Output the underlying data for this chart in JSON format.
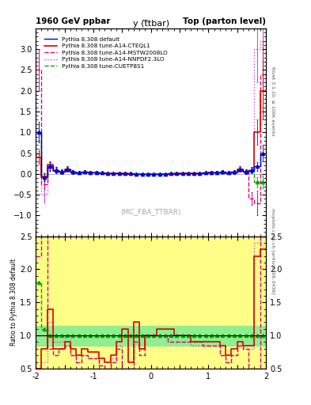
{
  "title_left": "1960 GeV ppbar",
  "title_right": "Top (parton level)",
  "plot_title": "y (t̅tbar)",
  "ylabel_ratio": "Ratio to Pythia 8.308 default",
  "right_label_top": "Rivet 3.1.10, ≥ 100k events",
  "right_label_bottom": "mcplots.cern.ch [arXiv:1306.3436]",
  "watermark": "(MC_FBA_TTBAR)",
  "xlim": [
    -2.0,
    2.0
  ],
  "ylim_main": [
    -1.5,
    3.5
  ],
  "ylim_ratio": [
    0.5,
    2.5
  ],
  "yticks_main": [
    -1.0,
    -0.5,
    0.0,
    0.5,
    1.0,
    1.5,
    2.0,
    2.5,
    3.0
  ],
  "yticks_ratio": [
    0.5,
    1.0,
    1.5,
    2.0,
    2.5
  ],
  "series": [
    {
      "label": "Pythia 8.308 default",
      "color": "#0000dd",
      "linestyle": "-",
      "linewidth": 1.0,
      "marker": "^",
      "markersize": 3,
      "zorder": 5
    },
    {
      "label": "Pythia 8.308 tune-A14-CTEQL1",
      "color": "#dd0000",
      "linestyle": "-",
      "linewidth": 1.2,
      "marker": null,
      "markersize": 0,
      "zorder": 4
    },
    {
      "label": "Pythia 8.308 tune-A14-MSTW2008LO",
      "color": "#dd0077",
      "linestyle": "--",
      "linewidth": 1.0,
      "marker": null,
      "markersize": 0,
      "zorder": 3
    },
    {
      "label": "Pythia 8.308 tune-A14-NNPDF2.3LO",
      "color": "#cc44cc",
      "linestyle": ":",
      "linewidth": 1.0,
      "marker": null,
      "markersize": 0,
      "zorder": 2
    },
    {
      "label": "Pythia 8.308 tune-CUETP8S1",
      "color": "#00aa00",
      "linestyle": "--",
      "linewidth": 1.0,
      "marker": "^",
      "markersize": 3,
      "zorder": 3
    }
  ],
  "x_edges": [
    -2.0,
    -1.9,
    -1.8,
    -1.7,
    -1.6,
    -1.5,
    -1.4,
    -1.3,
    -1.2,
    -1.1,
    -1.0,
    -0.9,
    -0.8,
    -0.7,
    -0.6,
    -0.5,
    -0.4,
    -0.3,
    -0.2,
    -0.1,
    0.0,
    0.1,
    0.2,
    0.3,
    0.4,
    0.5,
    0.6,
    0.7,
    0.8,
    0.9,
    1.0,
    1.1,
    1.2,
    1.3,
    1.4,
    1.5,
    1.6,
    1.7,
    1.8,
    1.9,
    2.0
  ],
  "main_data_0": [
    1.0,
    -0.08,
    0.18,
    0.1,
    0.06,
    0.12,
    0.05,
    0.03,
    0.05,
    0.04,
    0.04,
    0.03,
    0.02,
    0.02,
    0.01,
    0.01,
    0.01,
    0.0,
    0.0,
    0.0,
    0.0,
    0.0,
    0.0,
    0.01,
    0.01,
    0.01,
    0.01,
    0.02,
    0.02,
    0.03,
    0.04,
    0.04,
    0.05,
    0.03,
    0.05,
    0.12,
    0.06,
    0.1,
    0.18,
    0.5
  ],
  "main_err_0": [
    0.25,
    0.1,
    0.1,
    0.07,
    0.06,
    0.06,
    0.05,
    0.04,
    0.04,
    0.03,
    0.03,
    0.03,
    0.02,
    0.02,
    0.01,
    0.01,
    0.01,
    0.01,
    0.01,
    0.01,
    0.01,
    0.01,
    0.01,
    0.01,
    0.01,
    0.01,
    0.01,
    0.02,
    0.02,
    0.03,
    0.03,
    0.03,
    0.04,
    0.04,
    0.05,
    0.06,
    0.06,
    0.07,
    0.1,
    0.2
  ],
  "main_data_1": [
    0.4,
    -0.07,
    0.22,
    0.08,
    0.05,
    0.11,
    0.04,
    0.02,
    0.04,
    0.03,
    0.03,
    0.02,
    0.015,
    0.015,
    0.01,
    0.01,
    0.005,
    0.0,
    0.0,
    0.0,
    0.0,
    0.0,
    0.0,
    0.005,
    0.01,
    0.01,
    0.01,
    0.015,
    0.015,
    0.02,
    0.03,
    0.03,
    0.04,
    0.02,
    0.04,
    0.11,
    0.05,
    0.08,
    1.0,
    2.0
  ],
  "main_err_1": [
    0.15,
    0.08,
    0.08,
    0.06,
    0.05,
    0.05,
    0.04,
    0.03,
    0.03,
    0.02,
    0.02,
    0.02,
    0.015,
    0.015,
    0.01,
    0.01,
    0.01,
    0.005,
    0.005,
    0.005,
    0.005,
    0.005,
    0.005,
    0.01,
    0.01,
    0.01,
    0.01,
    0.015,
    0.015,
    0.02,
    0.02,
    0.02,
    0.03,
    0.03,
    0.04,
    0.05,
    0.05,
    0.06,
    0.3,
    0.7
  ],
  "main_data_2": [
    2.5,
    -0.25,
    0.15,
    0.07,
    0.05,
    0.1,
    0.04,
    0.02,
    0.04,
    0.03,
    0.03,
    0.02,
    0.015,
    0.015,
    0.01,
    0.005,
    0.005,
    0.0,
    0.0,
    0.0,
    0.0,
    0.0,
    0.0,
    0.005,
    0.005,
    0.01,
    0.01,
    0.015,
    0.015,
    0.02,
    0.03,
    0.03,
    0.035,
    0.02,
    0.04,
    0.1,
    0.05,
    -0.6,
    -0.7,
    2.4
  ],
  "main_err_2": [
    0.5,
    0.12,
    0.08,
    0.06,
    0.05,
    0.05,
    0.04,
    0.03,
    0.03,
    0.02,
    0.02,
    0.02,
    0.015,
    0.015,
    0.01,
    0.01,
    0.01,
    0.005,
    0.005,
    0.005,
    0.005,
    0.005,
    0.005,
    0.01,
    0.01,
    0.01,
    0.01,
    0.015,
    0.015,
    0.02,
    0.02,
    0.02,
    0.03,
    0.03,
    0.04,
    0.05,
    0.05,
    0.15,
    0.3,
    0.8
  ],
  "main_data_3": [
    0.45,
    -0.5,
    0.2,
    0.09,
    0.06,
    0.12,
    0.04,
    0.02,
    0.04,
    0.03,
    0.03,
    0.02,
    0.015,
    0.015,
    0.01,
    0.005,
    0.005,
    0.0,
    0.0,
    0.0,
    0.0,
    0.0,
    0.0,
    0.005,
    0.005,
    0.01,
    0.01,
    0.015,
    0.015,
    0.02,
    0.03,
    0.03,
    0.035,
    0.02,
    0.04,
    0.1,
    0.05,
    0.08,
    3.0,
    3.2
  ],
  "main_err_3": [
    0.15,
    0.18,
    0.1,
    0.07,
    0.05,
    0.05,
    0.04,
    0.03,
    0.03,
    0.02,
    0.02,
    0.02,
    0.015,
    0.015,
    0.01,
    0.01,
    0.01,
    0.005,
    0.005,
    0.005,
    0.005,
    0.005,
    0.005,
    0.01,
    0.01,
    0.01,
    0.01,
    0.015,
    0.015,
    0.02,
    0.02,
    0.02,
    0.03,
    0.03,
    0.04,
    0.05,
    0.05,
    0.06,
    0.8,
    1.0
  ],
  "main_data_4": [
    1.0,
    -0.08,
    0.18,
    0.1,
    0.06,
    0.12,
    0.05,
    0.03,
    0.05,
    0.04,
    0.04,
    0.03,
    0.02,
    0.02,
    0.01,
    0.01,
    0.01,
    0.0,
    0.0,
    0.0,
    0.0,
    0.0,
    0.0,
    0.01,
    0.01,
    0.01,
    0.01,
    0.02,
    0.02,
    0.03,
    0.04,
    0.04,
    0.05,
    0.03,
    0.05,
    0.12,
    0.06,
    0.1,
    -0.2,
    -0.2
  ],
  "main_err_4": [
    0.2,
    0.1,
    0.1,
    0.07,
    0.06,
    0.06,
    0.05,
    0.04,
    0.04,
    0.03,
    0.03,
    0.03,
    0.02,
    0.02,
    0.01,
    0.01,
    0.01,
    0.01,
    0.01,
    0.01,
    0.01,
    0.01,
    0.01,
    0.01,
    0.01,
    0.01,
    0.01,
    0.02,
    0.02,
    0.03,
    0.03,
    0.03,
    0.04,
    0.04,
    0.05,
    0.06,
    0.06,
    0.07,
    0.12,
    0.15
  ],
  "ratio_data_1": [
    0.5,
    0.8,
    1.4,
    0.8,
    0.8,
    0.9,
    0.8,
    0.7,
    0.8,
    0.75,
    0.75,
    0.65,
    0.6,
    0.7,
    0.9,
    1.1,
    0.6,
    1.2,
    0.8,
    1.0,
    1.0,
    1.1,
    1.1,
    1.1,
    1.0,
    1.0,
    1.0,
    0.9,
    0.9,
    0.9,
    0.9,
    0.9,
    0.85,
    0.7,
    0.8,
    0.9,
    0.85,
    0.85,
    2.2,
    2.3
  ],
  "ratio_data_2": [
    2.2,
    2.5,
    0.8,
    0.7,
    0.8,
    0.85,
    0.7,
    0.6,
    0.7,
    0.65,
    0.65,
    0.55,
    0.5,
    0.6,
    0.8,
    0.5,
    0.5,
    0.9,
    0.7,
    1.0,
    1.0,
    1.0,
    1.0,
    0.9,
    0.9,
    0.9,
    0.9,
    0.9,
    0.9,
    0.85,
    0.85,
    0.85,
    0.7,
    0.6,
    0.7,
    0.85,
    0.8,
    0.5,
    0.5,
    2.5
  ],
  "ratio_data_3": [
    0.5,
    0.6,
    1.2,
    0.9,
    0.9,
    1.0,
    0.7,
    0.6,
    0.7,
    0.65,
    0.65,
    0.55,
    0.5,
    0.65,
    0.85,
    0.5,
    0.5,
    1.0,
    0.8,
    1.0,
    1.0,
    1.0,
    1.0,
    0.9,
    0.9,
    0.9,
    0.9,
    0.85,
    0.85,
    0.85,
    0.85,
    0.85,
    0.7,
    0.6,
    0.7,
    0.85,
    0.8,
    0.8,
    2.4,
    2.5
  ],
  "ratio_data_4": [
    1.8,
    1.1,
    1.0,
    1.0,
    1.0,
    1.0,
    1.0,
    1.0,
    1.0,
    1.0,
    1.0,
    1.0,
    1.0,
    1.0,
    1.0,
    1.0,
    1.0,
    1.0,
    1.0,
    1.0,
    1.0,
    1.0,
    1.0,
    1.0,
    1.0,
    1.0,
    1.0,
    1.0,
    1.0,
    1.0,
    1.0,
    1.0,
    1.0,
    1.0,
    1.0,
    1.0,
    1.0,
    1.0,
    1.0,
    1.0
  ],
  "bg_green": "#90ee90",
  "bg_yellow": "#ffff88",
  "ratio_band_inner": [
    0.9,
    1.1
  ],
  "ratio_band_outer": [
    0.5,
    2.5
  ]
}
